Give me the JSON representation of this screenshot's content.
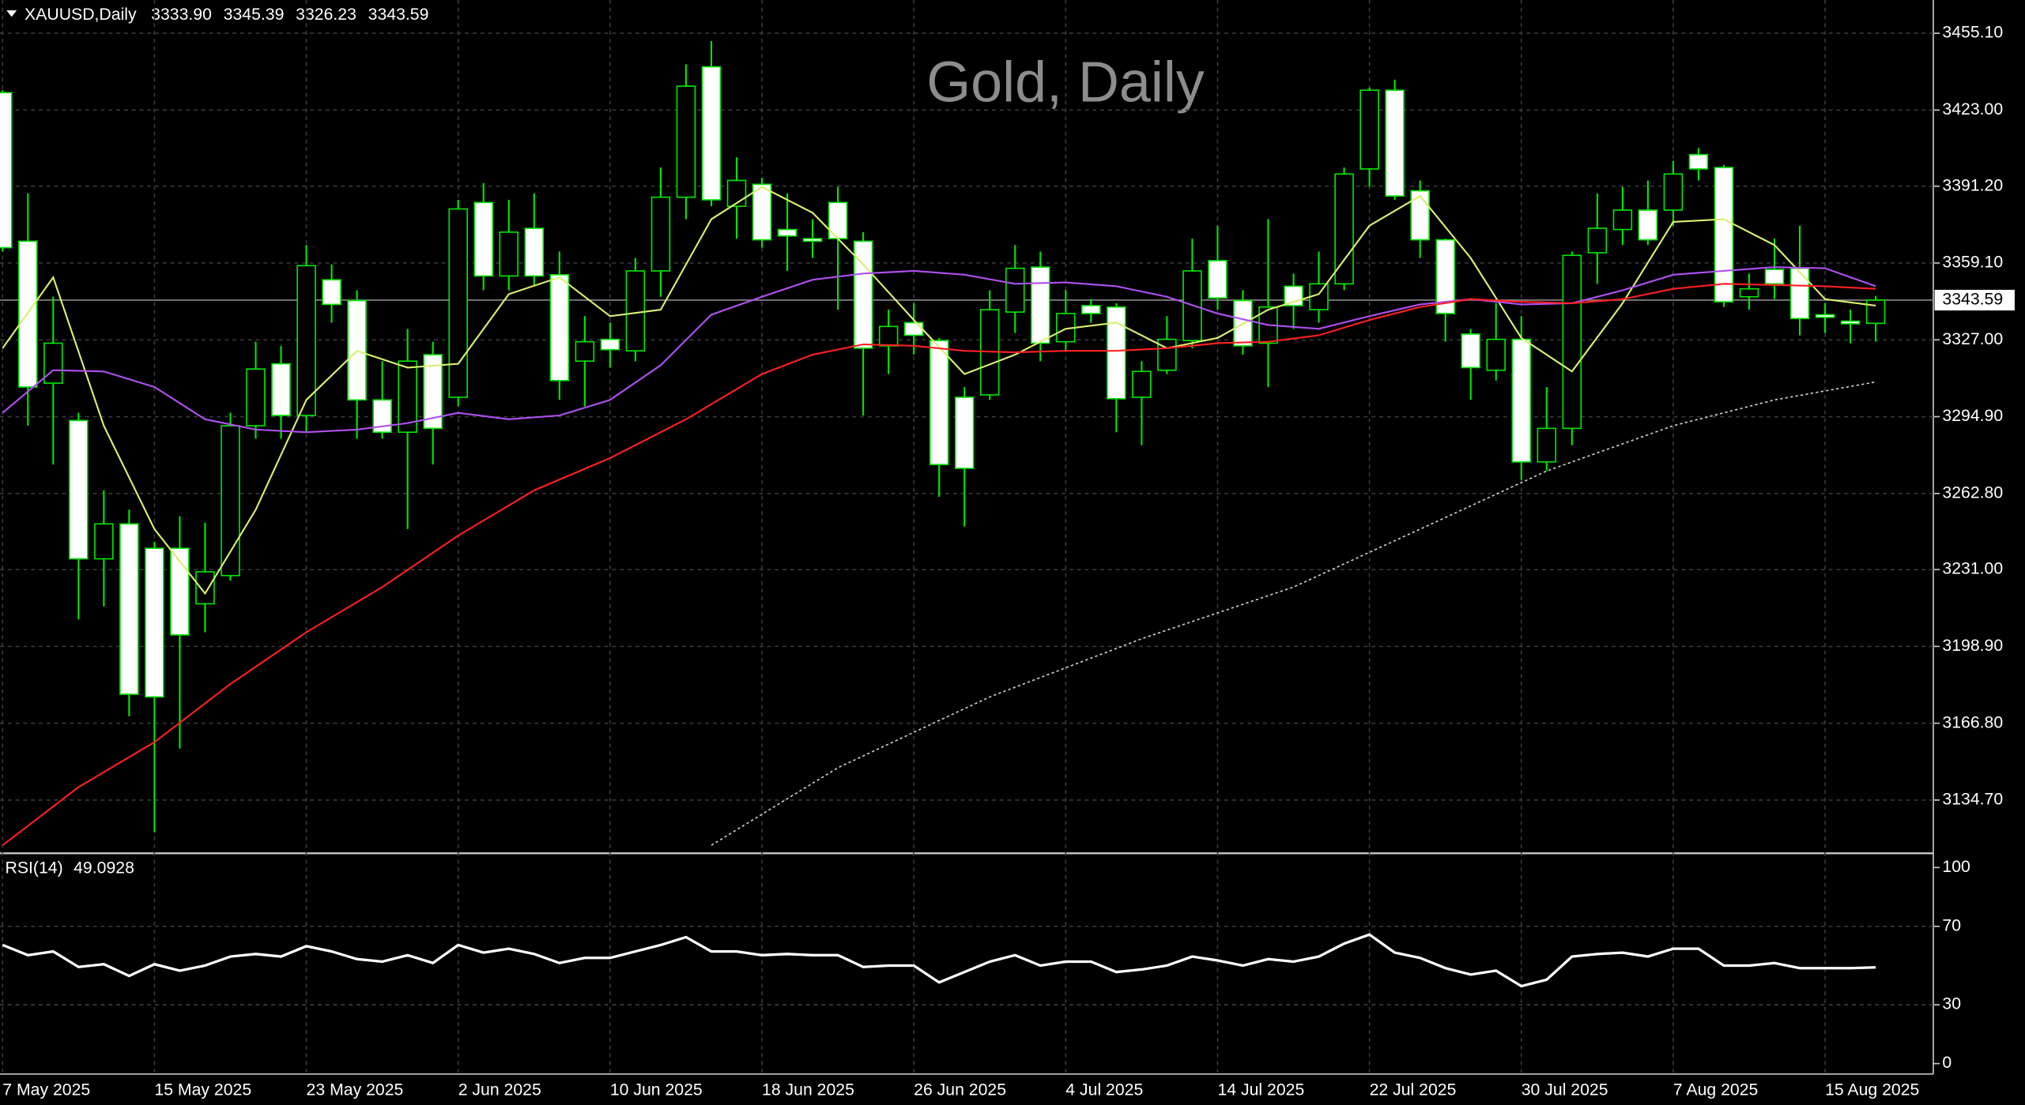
{
  "chart_data": [
    {
      "type": "candlestick",
      "title": "Gold, Daily",
      "symbol": "XAUUSD,Daily",
      "last_bar_labels": [
        "3333.90",
        "3345.39",
        "3326.23",
        "3343.59"
      ],
      "categories": [
        "7 May 2025",
        null,
        null,
        null,
        null,
        null,
        "15 May 2025",
        null,
        null,
        null,
        null,
        null,
        "23 May 2025",
        null,
        null,
        null,
        null,
        null,
        "2 Jun 2025",
        null,
        null,
        null,
        null,
        null,
        "10 Jun 2025",
        null,
        null,
        null,
        null,
        null,
        "18 Jun 2025",
        null,
        null,
        null,
        null,
        null,
        "26 Jun 2025",
        null,
        null,
        null,
        null,
        null,
        "4 Jul 2025",
        null,
        null,
        null,
        null,
        null,
        "14 Jul 2025",
        null,
        null,
        null,
        null,
        null,
        "22 Jul 2025",
        null,
        null,
        null,
        null,
        null,
        "30 Jul 2025",
        null,
        null,
        null,
        null,
        null,
        "7 Aug 2025",
        null,
        null,
        null,
        null,
        null,
        "15 Aug 2025",
        null,
        null
      ],
      "open": [
        3430.3,
        3368.2,
        3308.9,
        3293.3,
        3235.5,
        3250.1,
        3239.9,
        3239.9,
        3216.7,
        3228.5,
        3291.1,
        3317.0,
        3295.4,
        3352.1,
        3343.4,
        3301.9,
        3288.4,
        3320.8,
        3303.0,
        3384.4,
        3353.7,
        3373.6,
        3354.2,
        3318.1,
        3327.2,
        3322.4,
        3355.8,
        3386.6,
        3441.1,
        3382.8,
        3392.0,
        3373.1,
        3369.3,
        3384.4,
        3368.2,
        3324.5,
        3334.2,
        3326.7,
        3303.0,
        3304.0,
        3338.6,
        3357.4,
        3326.2,
        3341.3,
        3340.7,
        3303.0,
        3314.3,
        3326.7,
        3360.1,
        3343.4,
        3325.6,
        3349.4,
        3339.6,
        3350.4,
        3398.4,
        3431.3,
        3389.3,
        3368.8,
        3329.4,
        3314.3,
        3327.2,
        3276.0,
        3290.0,
        3363.4,
        3373.1,
        3381.2,
        3381.2,
        3404.4,
        3399.0,
        3345.0,
        3356.4,
        3356.9,
        3337.5,
        3334.8,
        3333.9
      ],
      "high": [
        3431.3,
        3388.2,
        3345.0,
        3296.5,
        3264.1,
        3256.0,
        3242.6,
        3253.3,
        3250.6,
        3296.5,
        3326.2,
        3324.5,
        3366.6,
        3358.5,
        3347.7,
        3318.1,
        3331.6,
        3326.2,
        3385.5,
        3392.5,
        3385.5,
        3388.2,
        3363.9,
        3336.9,
        3334.2,
        3361.2,
        3399.0,
        3442.1,
        3451.8,
        3403.3,
        3394.7,
        3388.2,
        3377.4,
        3390.9,
        3372.0,
        3339.6,
        3342.3,
        3327.8,
        3307.3,
        3347.7,
        3366.6,
        3363.9,
        3347.7,
        3344.0,
        3342.3,
        3318.1,
        3336.9,
        3369.3,
        3374.7,
        3347.7,
        3377.4,
        3354.7,
        3363.9,
        3399.0,
        3432.4,
        3435.7,
        3393.6,
        3369.3,
        3331.6,
        3342.3,
        3336.9,
        3307.3,
        3363.9,
        3388.2,
        3390.9,
        3393.6,
        3401.7,
        3407.1,
        3400.1,
        3354.7,
        3369.3,
        3374.7,
        3342.3,
        3339.6,
        3345.39
      ],
      "low": [
        3363.9,
        3291.1,
        3274.9,
        3210.2,
        3215.6,
        3169.7,
        3121.2,
        3156.2,
        3204.8,
        3226.4,
        3285.7,
        3285.7,
        3288.4,
        3334.2,
        3285.7,
        3285.7,
        3247.9,
        3274.9,
        3299.2,
        3347.7,
        3347.7,
        3349.4,
        3301.9,
        3299.2,
        3315.4,
        3318.1,
        3345.0,
        3377.4,
        3382.8,
        3369.3,
        3365.5,
        3355.8,
        3361.2,
        3339.6,
        3295.4,
        3312.7,
        3320.8,
        3261.4,
        3249.0,
        3301.9,
        3329.9,
        3318.1,
        3322.4,
        3334.2,
        3288.4,
        3283.0,
        3312.7,
        3323.5,
        3339.6,
        3320.8,
        3307.3,
        3331.6,
        3334.2,
        3347.7,
        3390.9,
        3385.5,
        3361.2,
        3326.2,
        3301.9,
        3310.0,
        3268.4,
        3272.2,
        3283.0,
        3350.4,
        3366.6,
        3366.6,
        3374.7,
        3393.6,
        3340.7,
        3339.6,
        3344.0,
        3328.9,
        3329.9,
        3325.6,
        3326.23
      ],
      "close": [
        3365.5,
        3307.3,
        3325.6,
        3235.5,
        3250.1,
        3178.9,
        3177.8,
        3203.7,
        3230.1,
        3291.1,
        3314.8,
        3295.4,
        3358.0,
        3341.8,
        3301.9,
        3288.4,
        3318.1,
        3290.0,
        3381.7,
        3353.7,
        3372.0,
        3353.7,
        3310.0,
        3326.2,
        3322.9,
        3355.8,
        3386.6,
        3433.0,
        3385.5,
        3393.6,
        3368.8,
        3370.4,
        3368.2,
        3369.3,
        3323.5,
        3332.6,
        3328.9,
        3274.9,
        3273.3,
        3339.6,
        3356.9,
        3325.6,
        3338.0,
        3338.0,
        3302.4,
        3313.8,
        3327.2,
        3355.8,
        3344.5,
        3324.5,
        3340.7,
        3341.3,
        3350.4,
        3396.3,
        3431.3,
        3387.1,
        3368.8,
        3338.0,
        3315.4,
        3327.2,
        3276.0,
        3290.0,
        3362.3,
        3373.6,
        3381.2,
        3368.8,
        3396.3,
        3398.4,
        3342.9,
        3348.3,
        3350.4,
        3335.9,
        3336.4,
        3333.7,
        3343.59
      ],
      "up_color": "#000000",
      "down_color": "#ffffff",
      "wick_color": "#00e600",
      "overlays": [
        {
          "color": "#d8f070",
          "style": "solid",
          "x": [
            0,
            2,
            4,
            6,
            8,
            10,
            12,
            14,
            16,
            18,
            20,
            22,
            24,
            26,
            28,
            30,
            32,
            34,
            36,
            38,
            40,
            42,
            44,
            46,
            48,
            50,
            52,
            54,
            56,
            58,
            60,
            62,
            64,
            66,
            68,
            70,
            72,
            74
          ],
          "values": [
            3323.5,
            3353.1,
            3291.1,
            3247.9,
            3221.0,
            3256.0,
            3301.9,
            3322.4,
            3315.4,
            3317.0,
            3346.1,
            3353.1,
            3336.9,
            3339.6,
            3377.4,
            3390.9,
            3380.1,
            3358.5,
            3335.3,
            3312.7,
            3320.8,
            3331.6,
            3334.2,
            3323.5,
            3327.8,
            3339.6,
            3346.1,
            3374.7,
            3387.1,
            3361.2,
            3327.8,
            3313.8,
            3342.3,
            3376.3,
            3377.4,
            3366.6,
            3344.0,
            3341.3
          ]
        },
        {
          "color": "#b050f0",
          "style": "solid",
          "x": [
            0,
            2,
            4,
            6,
            8,
            10,
            12,
            14,
            16,
            18,
            20,
            22,
            24,
            26,
            28,
            30,
            32,
            34,
            36,
            38,
            40,
            42,
            44,
            46,
            48,
            50,
            52,
            54,
            56,
            58,
            60,
            62,
            64,
            66,
            68,
            70,
            72,
            74
          ],
          "values": [
            3296.5,
            3314.3,
            3313.8,
            3307.3,
            3293.8,
            3289.5,
            3288.4,
            3289.5,
            3292.2,
            3296.5,
            3293.8,
            3295.4,
            3301.9,
            3316.4,
            3337.5,
            3345.0,
            3352.1,
            3354.7,
            3355.8,
            3354.2,
            3350.4,
            3351.0,
            3349.4,
            3345.0,
            3338.0,
            3333.2,
            3331.6,
            3336.9,
            3341.8,
            3344.0,
            3341.8,
            3342.3,
            3347.7,
            3354.2,
            3355.8,
            3357.4,
            3356.9,
            3349.4
          ]
        },
        {
          "color": "#ff2020",
          "style": "solid",
          "x": [
            0,
            3,
            6,
            9,
            12,
            15,
            18,
            21,
            24,
            27,
            30,
            32,
            34,
            36,
            38,
            40,
            42,
            44,
            46,
            48,
            50,
            52,
            54,
            56,
            58,
            60,
            62,
            64,
            66,
            68,
            70,
            72,
            74
          ],
          "values": [
            3115.8,
            3140.1,
            3158.9,
            3183.2,
            3204.8,
            3223.7,
            3245.2,
            3264.1,
            3277.6,
            3293.8,
            3312.7,
            3320.8,
            3325.1,
            3324.5,
            3322.4,
            3321.8,
            3322.4,
            3322.4,
            3323.5,
            3325.6,
            3326.2,
            3328.9,
            3335.3,
            3340.7,
            3344.0,
            3342.9,
            3342.3,
            3344.0,
            3348.3,
            3350.4,
            3349.9,
            3349.4,
            3348.3
          ]
        },
        {
          "color": "#d0d0d0",
          "style": "dotted",
          "x": [
            28,
            33,
            39,
            45,
            51,
            56,
            61,
            66,
            70,
            74
          ],
          "values": [
            3115.8,
            3148.2,
            3177.8,
            3202.1,
            3223.7,
            3247.9,
            3272.2,
            3291.1,
            3301.9,
            3309.4
          ]
        }
      ],
      "ylim": [
        3113,
        3469
      ],
      "yticks": [
        {
          "value": 3455.1,
          "label": "3455.10"
        },
        {
          "value": 3423,
          "label": "3423.00"
        },
        {
          "value": 3391.2,
          "label": "3391.20"
        },
        {
          "value": 3359.1,
          "label": "3359.10"
        },
        {
          "value": 3327,
          "label": "3327.00"
        },
        {
          "value": 3294.9,
          "label": "3294.90"
        },
        {
          "value": 3262.8,
          "label": "3262.80"
        },
        {
          "value": 3231,
          "label": "3231.00"
        },
        {
          "value": 3198.9,
          "label": "3198.90"
        },
        {
          "value": 3166.8,
          "label": "3166.80"
        },
        {
          "value": 3134.7,
          "label": "3134.70"
        }
      ],
      "grid": true
    },
    {
      "type": "line",
      "label": "RSI(14)",
      "color": "#ffffff",
      "values": [
        60.5,
        55.3,
        57.2,
        49.3,
        50.7,
        44.7,
        50.7,
        47.4,
        50.0,
        54.6,
        55.9,
        54.6,
        59.9,
        57.2,
        53.3,
        52.0,
        55.3,
        51.3,
        60.5,
        56.6,
        58.6,
        55.9,
        51.3,
        53.9,
        53.9,
        57.2,
        60.5,
        64.5,
        57.2,
        57.2,
        55.3,
        55.9,
        55.3,
        55.3,
        49.3,
        50.0,
        50.0,
        41.4,
        46.7,
        52.0,
        55.3,
        50.0,
        52.0,
        52.0,
        46.7,
        48.0,
        50.0,
        54.6,
        52.6,
        50.0,
        53.3,
        52.0,
        54.6,
        61.2,
        65.8,
        56.6,
        53.9,
        48.7,
        45.4,
        47.4,
        39.5,
        42.8,
        54.6,
        55.9,
        56.6,
        54.6,
        58.6,
        58.6,
        50.0,
        50.0,
        51.3,
        48.7,
        48.7,
        48.7,
        49.0928
      ],
      "ylim": [
        -5.3,
        106.6
      ],
      "yticks": [
        100,
        70,
        30,
        0
      ],
      "grid": true
    }
  ]
}
